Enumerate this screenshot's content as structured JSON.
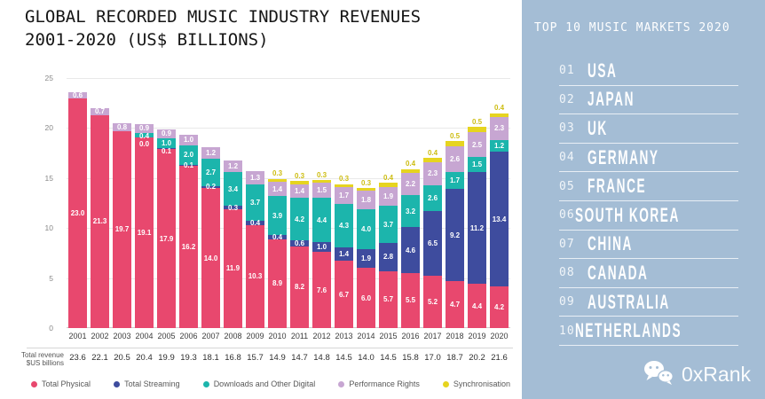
{
  "title": {
    "line1": "GLOBAL RECORDED MUSIC INDUSTRY REVENUES",
    "line2": "2001-2020 (US$ BILLIONS)"
  },
  "chart_data": {
    "type": "bar",
    "stacked": true,
    "title": "GLOBAL RECORDED MUSIC INDUSTRY REVENUES 2001-2020 (US$ BILLIONS)",
    "ylabel": "",
    "xlabel": "",
    "ylim": [
      0,
      25
    ],
    "yticks": [
      0,
      5,
      10,
      15,
      20,
      25
    ],
    "grid": true,
    "legend_position": "bottom",
    "categories": [
      "2001",
      "2002",
      "2003",
      "2004",
      "2005",
      "2006",
      "2007",
      "2008",
      "2009",
      "2010",
      "2011",
      "2012",
      "2013",
      "2014",
      "2015",
      "2016",
      "2017",
      "2018",
      "2019",
      "2020"
    ],
    "series": [
      {
        "key": "total-physical",
        "name": "Total Physical",
        "color": "#e8486e",
        "values": [
          23.0,
          21.3,
          19.7,
          19.1,
          17.9,
          16.2,
          14.0,
          11.9,
          10.3,
          8.9,
          8.2,
          7.6,
          6.7,
          6.0,
          5.7,
          5.5,
          5.2,
          4.7,
          4.4,
          4.2
        ]
      },
      {
        "key": "total-streaming",
        "name": "Total Streaming",
        "color": "#3e4c9e",
        "values": [
          null,
          null,
          null,
          0.0,
          0.1,
          0.1,
          0.2,
          0.3,
          0.4,
          0.4,
          0.6,
          1.0,
          1.4,
          1.9,
          2.8,
          4.6,
          6.5,
          9.2,
          11.2,
          13.4
        ]
      },
      {
        "key": "downloads-and-other-digital",
        "name": "Downloads and Other Digital",
        "color": "#1cb5ac",
        "values": [
          null,
          null,
          null,
          0.4,
          1.0,
          2.0,
          2.7,
          3.4,
          3.7,
          3.9,
          4.2,
          4.4,
          4.3,
          4.0,
          3.7,
          3.2,
          2.6,
          1.7,
          1.5,
          1.2
        ]
      },
      {
        "key": "performance-rights",
        "name": "Performance Rights",
        "color": "#c7a6d2",
        "values": [
          0.6,
          0.7,
          0.8,
          0.9,
          0.9,
          1.0,
          1.2,
          1.2,
          1.3,
          1.4,
          1.4,
          1.5,
          1.7,
          1.8,
          1.9,
          2.2,
          2.3,
          2.6,
          2.5,
          2.3
        ]
      },
      {
        "key": "synchronisation",
        "name": "Synchronisation",
        "color": "#e6d41f",
        "values": [
          null,
          null,
          null,
          null,
          null,
          null,
          null,
          null,
          null,
          0.3,
          0.3,
          0.3,
          0.3,
          0.3,
          0.4,
          0.4,
          0.4,
          0.5,
          0.5,
          0.4
        ]
      }
    ],
    "totals_label_line1": "Total revenue",
    "totals_label_line2": "$US billions",
    "totals": [
      "23.6",
      "22.1",
      "20.5",
      "20.4",
      "19.9",
      "19.3",
      "18.1",
      "16.8",
      "15.7",
      "14.9",
      "14.7",
      "14.8",
      "14.5",
      "14.0",
      "14.5",
      "15.8",
      "17.0",
      "18.7",
      "20.2",
      "21.6"
    ]
  },
  "sidebar": {
    "title": "TOP 10 MUSIC MARKETS 2020",
    "bg_color": "#a4bdd5",
    "items": [
      {
        "rank": "01",
        "country": "USA"
      },
      {
        "rank": "02",
        "country": "JAPAN"
      },
      {
        "rank": "03",
        "country": "UK"
      },
      {
        "rank": "04",
        "country": "GERMANY"
      },
      {
        "rank": "05",
        "country": "FRANCE"
      },
      {
        "rank": "06",
        "country": "SOUTH KOREA"
      },
      {
        "rank": "07",
        "country": "CHINA"
      },
      {
        "rank": "08",
        "country": "CANADA"
      },
      {
        "rank": "09",
        "country": "AUSTRALIA"
      },
      {
        "rank": "10",
        "country": "NETHERLANDS"
      }
    ],
    "watermark": {
      "icon": "wechat-icon",
      "text": "0xRank"
    }
  }
}
